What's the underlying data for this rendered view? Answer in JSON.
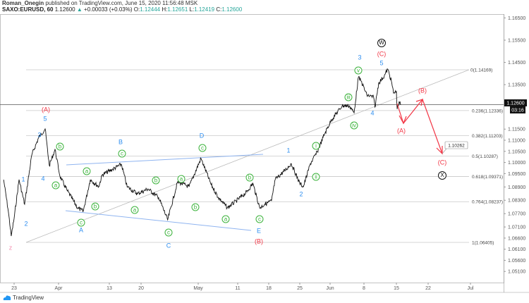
{
  "header": {
    "author": "Roman_Onegin",
    "published": "published on TradingView.com, June 15, 2020 11:56:48 MSK",
    "symbol": "SAXO:EURUSD, 60",
    "last": "1.12600",
    "change": "+0.00033 (+0.03%)",
    "o_label": "O:",
    "o": "1.12444",
    "h_label": "H:",
    "h": "1.12651",
    "l_label": "L:",
    "l": "1.12419",
    "c_label": "C:",
    "c": "1.12600"
  },
  "colors": {
    "up": "#26a69a",
    "wave_green": "#3cb33c",
    "wave_blue": "#2f8ff0",
    "wave_red": "#f23645",
    "projection": "#f23645",
    "trendline": "#8fb4f0"
  },
  "chart_data": {
    "type": "line",
    "price_scale": {
      "ticks": [
        "1.16500",
        "1.15500",
        "1.14500",
        "1.13500",
        "1.11500",
        "1.11000",
        "1.10500",
        "1.10000",
        "1.09500",
        "1.08900",
        "1.08300",
        "1.07700",
        "1.07100",
        "1.06600",
        "1.06100",
        "1.05600",
        "1.05100"
      ]
    },
    "current_price": {
      "value": "1.12600",
      "countdown": "03:16"
    },
    "time_scale": {
      "ticks": [
        {
          "label": "23",
          "date": "2020-03-23"
        },
        {
          "label": "Apr",
          "date": "2020-04-01"
        },
        {
          "label": "13",
          "date": "2020-04-13"
        },
        {
          "label": "20",
          "date": "2020-04-20"
        },
        {
          "label": "May",
          "date": "2020-05-01"
        },
        {
          "label": "11",
          "date": "2020-05-11"
        },
        {
          "label": "18",
          "date": "2020-05-18"
        },
        {
          "label": "25",
          "date": "2020-05-25"
        },
        {
          "label": "Jun",
          "date": "2020-06-01"
        },
        {
          "label": "8",
          "date": "2020-06-08"
        },
        {
          "label": "15",
          "date": "2020-06-15"
        },
        {
          "label": "22",
          "date": "2020-06-22"
        },
        {
          "label": "Jul",
          "date": "2020-07-01"
        }
      ]
    },
    "series": [
      {
        "values": [
          [
            "2020-03-20T21:00",
            1.0923
          ],
          [
            "2020-03-21T20:00",
            1.078
          ],
          [
            "2020-03-22T10:00",
            1.0669
          ],
          [
            "2020-03-23T00:00",
            1.0748
          ],
          [
            "2020-03-24T00:00",
            1.0923
          ],
          [
            "2020-03-25T03:00",
            1.0812
          ],
          [
            "2020-03-26T14:00",
            1.1034
          ],
          [
            "2020-03-28T00:00",
            1.1113
          ],
          [
            "2020-03-29T07:00",
            1.1151
          ],
          [
            "2020-03-30T03:00",
            1.0986
          ],
          [
            "2020-03-31T07:00",
            1.1059
          ],
          [
            "2020-04-01T08:00",
            1.0938
          ],
          [
            "2020-04-03T00:00",
            1.0875
          ],
          [
            "2020-04-05T12:00",
            1.0796
          ],
          [
            "2020-04-06T20:00",
            1.078
          ],
          [
            "2020-04-08T12:00",
            1.0923
          ],
          [
            "2020-04-10T12:00",
            1.0891
          ],
          [
            "2020-04-11T08:00",
            1.0945
          ],
          [
            "2020-04-13T19:00",
            1.097
          ],
          [
            "2020-04-15T16:00",
            1.0992
          ],
          [
            "2020-04-16T22:00",
            1.0891
          ],
          [
            "2020-04-19T05:00",
            1.0859
          ],
          [
            "2020-04-21T08:00",
            1.0881
          ],
          [
            "2020-04-23T09:00",
            1.0843
          ],
          [
            "2020-04-25T03:00",
            1.0742
          ],
          [
            "2020-04-27T01:00",
            1.0913
          ],
          [
            "2020-04-29T06:00",
            1.0891
          ],
          [
            "2020-05-01T17:00",
            1.1018
          ],
          [
            "2020-05-04T07:00",
            1.09
          ],
          [
            "2020-05-06T02:00",
            1.0843
          ],
          [
            "2020-05-08T10:00",
            1.0796
          ],
          [
            "2020-05-10T15:00",
            1.0827
          ],
          [
            "2020-05-13T02:00",
            1.0868
          ],
          [
            "2020-05-14T10:00",
            1.0906
          ],
          [
            "2020-05-15T23:00",
            1.0796
          ],
          [
            "2020-05-17T02:00",
            1.0812
          ],
          [
            "2020-05-18T15:00",
            1.0827
          ],
          [
            "2020-05-19T11:00",
            1.0923
          ],
          [
            "2020-05-21T23:00",
            1.097
          ],
          [
            "2020-05-23T02:00",
            1.0995
          ],
          [
            "2020-05-25T00:00",
            1.0906
          ],
          [
            "2020-05-25T20:00",
            1.0891
          ],
          [
            "2020-05-27T11:00",
            1.0995
          ],
          [
            "2020-05-29T02:00",
            1.1049
          ],
          [
            "2020-05-30T17:00",
            1.1128
          ],
          [
            "2020-06-01T07:00",
            1.1192
          ],
          [
            "2020-06-03T12:00",
            1.1255
          ],
          [
            "2020-06-04T23:00",
            1.1255
          ],
          [
            "2020-06-05T23:00",
            1.1223
          ],
          [
            "2020-06-06T20:00",
            1.1382
          ],
          [
            "2020-06-07T10:00",
            1.1366
          ],
          [
            "2020-06-08T15:00",
            1.1303
          ],
          [
            "2020-06-10T02:00",
            1.1293
          ],
          [
            "2020-06-10T09:00",
            1.1249
          ],
          [
            "2020-06-11T04:00",
            1.1357
          ],
          [
            "2020-06-12T09:00",
            1.1389
          ],
          [
            "2020-06-13T03:00",
            1.142
          ],
          [
            "2020-06-13T22:00",
            1.1366
          ],
          [
            "2020-06-14T09:00",
            1.1312
          ],
          [
            "2020-06-15T00:00",
            1.1319
          ],
          [
            "2020-06-15T04:00",
            1.124
          ],
          [
            "2020-06-15T14:00",
            1.1271
          ],
          [
            "2020-06-16T00:00",
            1.126
          ]
        ]
      }
    ],
    "fib_levels": [
      {
        "label": "0(1.14169)",
        "price": 1.14169
      },
      {
        "label": "0.236(1.12336)",
        "price": 1.12336
      },
      {
        "label": "0.382(1.11203)",
        "price": 1.11203
      },
      {
        "label": "0.5(1.10287)",
        "price": 1.10287
      },
      {
        "label": "0.618(1.09371)",
        "price": 1.09371
      },
      {
        "label": "0.764(1.08237)",
        "price": 1.08237
      },
      {
        "label": "1(1.06405)",
        "price": 1.06405
      }
    ],
    "projection_target": "1.10262",
    "annotations": [
      {
        "text": "b",
        "style": "green"
      },
      {
        "text": "a",
        "style": "green"
      },
      {
        "text": "c",
        "style": "green"
      },
      {
        "text": "a",
        "style": "green"
      },
      {
        "text": "b",
        "style": "green"
      },
      {
        "text": "c",
        "style": "green"
      },
      {
        "text": "a",
        "style": "green"
      },
      {
        "text": "b",
        "style": "green"
      },
      {
        "text": "c",
        "style": "green"
      },
      {
        "text": "a",
        "style": "green"
      },
      {
        "text": "c",
        "style": "green"
      },
      {
        "text": "b",
        "style": "green"
      },
      {
        "text": "a",
        "style": "green"
      },
      {
        "text": "b",
        "style": "green"
      },
      {
        "text": "c",
        "style": "green"
      },
      {
        "text": "i",
        "style": "green"
      },
      {
        "text": "ii",
        "style": "green"
      },
      {
        "text": "iii",
        "style": "green"
      },
      {
        "text": "iv",
        "style": "green"
      },
      {
        "text": "v",
        "style": "green"
      },
      {
        "text": "1",
        "style": "blue"
      },
      {
        "text": "2",
        "style": "blue"
      },
      {
        "text": "3",
        "style": "blue"
      },
      {
        "text": "4",
        "style": "blue"
      },
      {
        "text": "5",
        "style": "blue"
      },
      {
        "text": "A",
        "style": "blue"
      },
      {
        "text": "B",
        "style": "blue"
      },
      {
        "text": "C",
        "style": "blue"
      },
      {
        "text": "D",
        "style": "blue"
      },
      {
        "text": "E",
        "style": "blue"
      },
      {
        "text": "1",
        "style": "blue"
      },
      {
        "text": "2",
        "style": "blue"
      },
      {
        "text": "3",
        "style": "blue"
      },
      {
        "text": "4",
        "style": "blue"
      },
      {
        "text": "5",
        "style": "blue"
      },
      {
        "text": "(A)",
        "style": "red"
      },
      {
        "text": "(B)",
        "style": "red"
      },
      {
        "text": "(C)",
        "style": "red"
      },
      {
        "text": "(B)",
        "style": "red"
      },
      {
        "text": "(A)",
        "style": "red"
      },
      {
        "text": "(C)",
        "style": "red"
      },
      {
        "text": "z",
        "style": "pink"
      },
      {
        "text": "W",
        "style": "black-circle"
      },
      {
        "text": "X",
        "style": "black-circle"
      }
    ]
  },
  "footer": {
    "logo": "TradingView"
  }
}
